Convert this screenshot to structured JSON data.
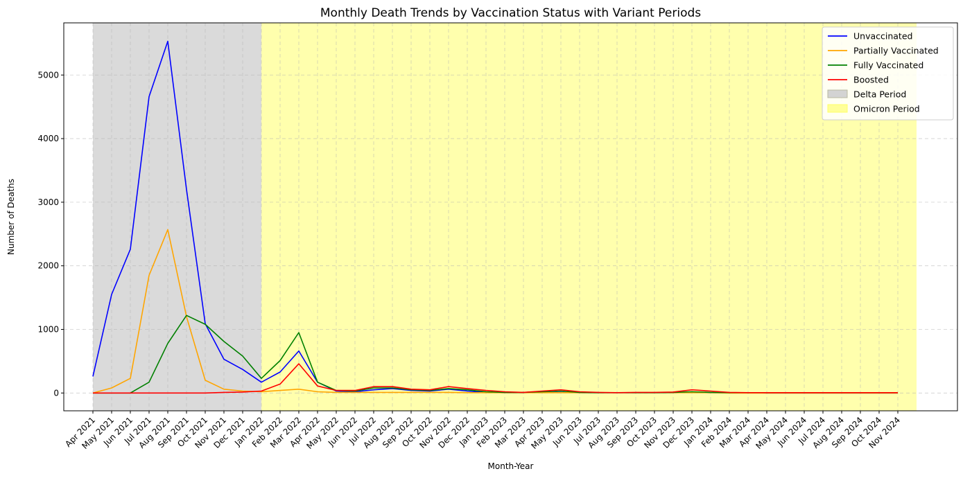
{
  "chart_data": {
    "type": "line",
    "title": "Monthly Death Trends by Vaccination Status with Variant Periods",
    "xlabel": "Month-Year",
    "ylabel": "Number of Deaths",
    "ylim": [
      -280,
      5820
    ],
    "yticks": [
      0,
      1000,
      2000,
      3000,
      4000,
      5000
    ],
    "grid": true,
    "legend_position": "top-right",
    "categories": [
      "Apr 2021",
      "May 2021",
      "Jun 2021",
      "Jul 2021",
      "Aug 2021",
      "Sep 2021",
      "Oct 2021",
      "Nov 2021",
      "Dec 2021",
      "Jan 2022",
      "Feb 2022",
      "Mar 2022",
      "Apr 2022",
      "May 2022",
      "Jun 2022",
      "Jul 2022",
      "Aug 2022",
      "Sep 2022",
      "Oct 2022",
      "Nov 2022",
      "Dec 2022",
      "Jan 2023",
      "Feb 2023",
      "Mar 2023",
      "Apr 2023",
      "May 2023",
      "Jun 2023",
      "Jul 2023",
      "Aug 2023",
      "Sep 2023",
      "Oct 2023",
      "Nov 2023",
      "Dec 2023",
      "Jan 2024",
      "Feb 2024",
      "Mar 2024",
      "Apr 2024",
      "May 2024",
      "Jun 2024",
      "Jul 2024",
      "Aug 2024",
      "Sep 2024",
      "Oct 2024",
      "Nov 2024"
    ],
    "series": [
      {
        "name": "Unvaccinated",
        "color": "#0000ff",
        "values": [
          260,
          1550,
          2260,
          4660,
          5530,
          3200,
          1090,
          530,
          370,
          170,
          330,
          660,
          170,
          30,
          20,
          50,
          70,
          40,
          30,
          60,
          30,
          10,
          5,
          5,
          10,
          10,
          5,
          5,
          5,
          5,
          5,
          5,
          10,
          5,
          5,
          5,
          0,
          0,
          0,
          0,
          0,
          0,
          0,
          0
        ]
      },
      {
        "name": "Partially Vaccinated",
        "color": "#ffa500",
        "values": [
          0,
          80,
          230,
          1850,
          2570,
          1200,
          200,
          60,
          30,
          20,
          40,
          60,
          20,
          10,
          10,
          10,
          10,
          10,
          10,
          10,
          5,
          5,
          5,
          5,
          5,
          5,
          5,
          5,
          5,
          5,
          5,
          5,
          5,
          5,
          0,
          0,
          0,
          0,
          0,
          0,
          0,
          0,
          0,
          0
        ]
      },
      {
        "name": "Fully Vaccinated",
        "color": "#008000",
        "values": [
          0,
          0,
          0,
          170,
          780,
          1220,
          1080,
          810,
          580,
          230,
          510,
          950,
          170,
          40,
          30,
          80,
          80,
          50,
          40,
          70,
          50,
          20,
          10,
          10,
          20,
          30,
          10,
          5,
          5,
          5,
          5,
          10,
          20,
          10,
          5,
          5,
          5,
          5,
          5,
          5,
          5,
          5,
          5,
          5
        ]
      },
      {
        "name": "Boosted",
        "color": "#ff0000",
        "values": [
          0,
          0,
          0,
          0,
          0,
          0,
          0,
          10,
          15,
          30,
          140,
          460,
          110,
          40,
          40,
          100,
          100,
          60,
          50,
          100,
          70,
          40,
          20,
          10,
          30,
          50,
          20,
          10,
          5,
          10,
          10,
          15,
          50,
          30,
          10,
          5,
          5,
          5,
          5,
          5,
          5,
          5,
          5,
          5
        ]
      }
    ],
    "periods": [
      {
        "name": "Delta Period",
        "color": "#d3d3d3",
        "start": "Apr 2021",
        "end": "Jan 2022"
      },
      {
        "name": "Omicron Period",
        "color": "#ffff99",
        "start": "Jan 2022",
        "end": "Dec 2024"
      }
    ]
  }
}
